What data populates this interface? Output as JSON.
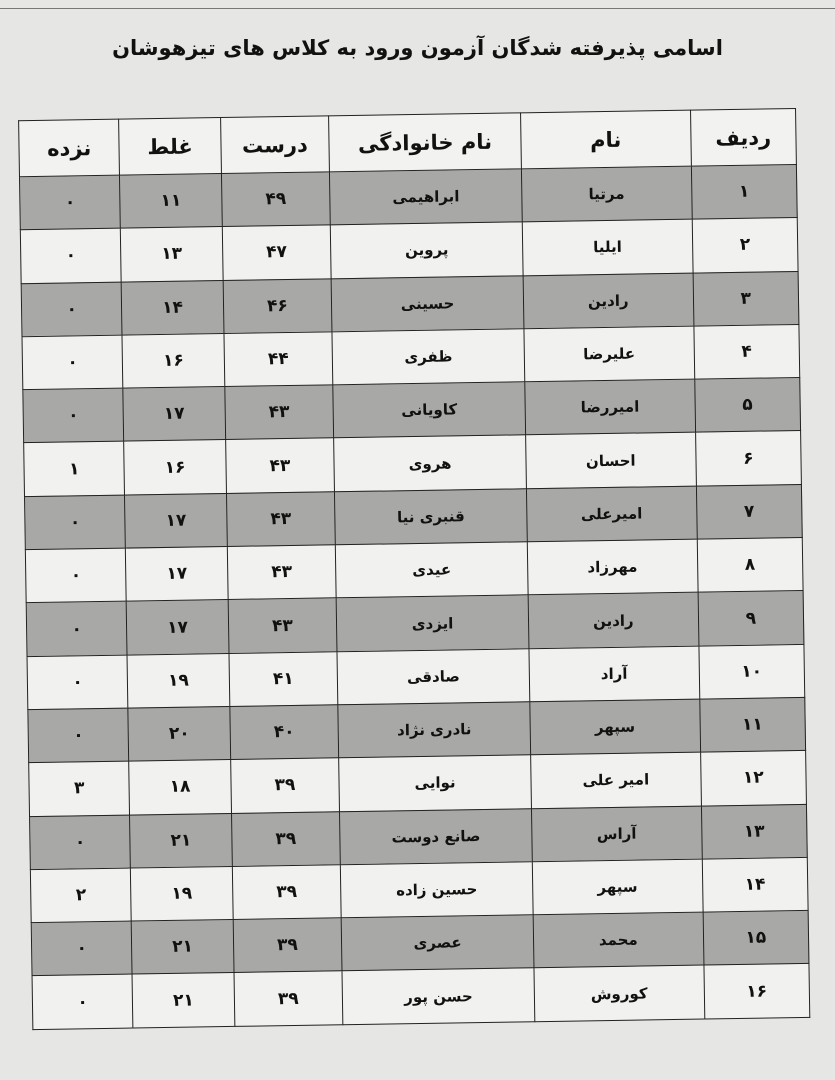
{
  "title": "اسامی پذیرفته شدگان آزمون ورود به کلاس های تیزهوشان",
  "columns": [
    "ردیف",
    "نام",
    "نام خانوادگی",
    "درست",
    "غلط",
    "نزده"
  ],
  "rows": [
    [
      "۱",
      "مرتیا",
      "ابراهیمی",
      "۴۹",
      "۱۱",
      "۰"
    ],
    [
      "۲",
      "ایلیا",
      "پروین",
      "۴۷",
      "۱۳",
      "۰"
    ],
    [
      "۳",
      "رادین",
      "حسینی",
      "۴۶",
      "۱۴",
      "۰"
    ],
    [
      "۴",
      "علیرضا",
      "ظفری",
      "۴۴",
      "۱۶",
      "۰"
    ],
    [
      "۵",
      "امیررضا",
      "کاویانی",
      "۴۳",
      "۱۷",
      "۰"
    ],
    [
      "۶",
      "احسان",
      "هروی",
      "۴۳",
      "۱۶",
      "۱"
    ],
    [
      "۷",
      "امیرعلی",
      "قنبری نیا",
      "۴۳",
      "۱۷",
      "۰"
    ],
    [
      "۸",
      "مهرزاد",
      "عیدی",
      "۴۳",
      "۱۷",
      "۰"
    ],
    [
      "۹",
      "رادین",
      "ایزدی",
      "۴۳",
      "۱۷",
      "۰"
    ],
    [
      "۱۰",
      "آراد",
      "صادقی",
      "۴۱",
      "۱۹",
      "۰"
    ],
    [
      "۱۱",
      "سپهر",
      "نادری نژاد",
      "۴۰",
      "۲۰",
      "۰"
    ],
    [
      "۱۲",
      "امیر علی",
      "نوایی",
      "۳۹",
      "۱۸",
      "۳"
    ],
    [
      "۱۳",
      "آراس",
      "صانع دوست",
      "۳۹",
      "۲۱",
      "۰"
    ],
    [
      "۱۴",
      "سپهر",
      "حسین زاده",
      "۳۹",
      "۱۹",
      "۲"
    ],
    [
      "۱۵",
      "محمد",
      "عصری",
      "۳۹",
      "۲۱",
      "۰"
    ],
    [
      "۱۶",
      "کوروش",
      "حسن پور",
      "۳۹",
      "۲۱",
      "۰"
    ]
  ]
}
